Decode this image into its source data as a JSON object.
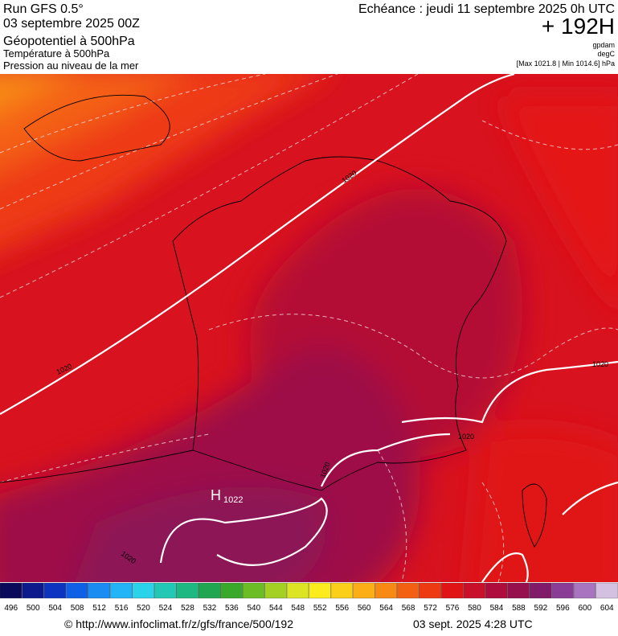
{
  "header": {
    "run": "Run GFS 0.5°",
    "date": "03 septembre 2025 00Z",
    "field1": "Géopotentiel à 500hPa",
    "field2": "Température à 500hPa",
    "field3": "Pression au niveau de la mer",
    "echeance": "Echéance : jeudi 11 septembre 2025 0h UTC",
    "lead": "+ 192H",
    "unit1": "gpdam",
    "unit2": "degC",
    "range": "[Max 1021.8 | Min 1014.6] hPa"
  },
  "map": {
    "isobar_labels": [
      "1020",
      "1020",
      "1020",
      "1020",
      "1020",
      "1020"
    ],
    "high": {
      "letter": "H",
      "value": "1022"
    }
  },
  "legend": {
    "values": [
      496,
      500,
      504,
      508,
      512,
      516,
      520,
      524,
      528,
      532,
      536,
      540,
      544,
      548,
      552,
      556,
      560,
      564,
      568,
      572,
      576,
      580,
      584,
      588,
      592,
      596,
      600,
      604
    ],
    "colors": [
      "#0a0a5a",
      "#0c1a8c",
      "#0d34c0",
      "#1060e6",
      "#1a8cf2",
      "#22b4f6",
      "#2ad2ea",
      "#22c8b4",
      "#1eb882",
      "#20a650",
      "#3aa82a",
      "#6cbc26",
      "#a4d024",
      "#dce424",
      "#fcec1e",
      "#fcd01a",
      "#fcae16",
      "#f88a14",
      "#f46012",
      "#ee3a12",
      "#e01414",
      "#c8102a",
      "#ae0c3c",
      "#96104e",
      "#821a6a",
      "#8a3c96",
      "#a874c0",
      "#d4c0e0"
    ]
  },
  "footer": {
    "url": "© http://www.infoclimat.fr/z/gfs/france/500/192",
    "timestamp": "03 sept. 2025  4:28 UTC"
  }
}
